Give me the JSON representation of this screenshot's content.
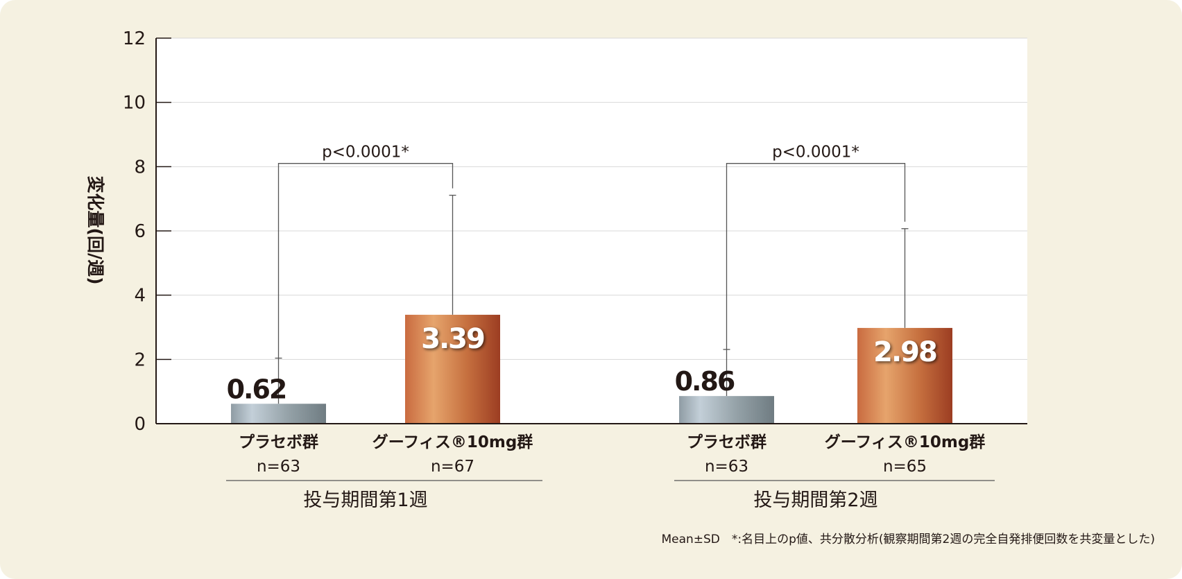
{
  "chart_data": {
    "type": "bar",
    "title": "",
    "ylabel": "変化量(回/週)",
    "ylim": [
      0,
      12
    ],
    "yticks": [
      "0",
      "2",
      "4",
      "6",
      "8",
      "10",
      "12"
    ],
    "grid": true,
    "groups": [
      {
        "label": "投与期間第1週",
        "p_label": "p<0.0001*",
        "bars": [
          {
            "name": "プラセボ群",
            "n_label": "n=63",
            "value": 0.62,
            "value_label": "0.62",
            "sd_top": 2.04,
            "kind": "placebo"
          },
          {
            "name": "グーフィス®10mg群",
            "n_label": "n=67",
            "value": 3.39,
            "value_label": "3.39",
            "sd_top": 7.11,
            "kind": "drug"
          }
        ]
      },
      {
        "label": "投与期間第2週",
        "p_label": "p<0.0001*",
        "bars": [
          {
            "name": "プラセボ群",
            "n_label": "n=63",
            "value": 0.86,
            "value_label": "0.86",
            "sd_top": 2.31,
            "kind": "placebo"
          },
          {
            "name": "グーフィス®10mg群",
            "n_label": "n=65",
            "value": 2.98,
            "value_label": "2.98",
            "sd_top": 6.07,
            "kind": "drug"
          }
        ]
      }
    ],
    "bracket_level": 8.1,
    "footnote": "Mean±SD　*:名目上のp値、共分散分析(観察期間第2週の完全自発排便回数を共変量とした)"
  },
  "colors": {
    "background": "#f5f1e1",
    "placebo": "#9aa8b0",
    "drug": "#c8703f"
  }
}
